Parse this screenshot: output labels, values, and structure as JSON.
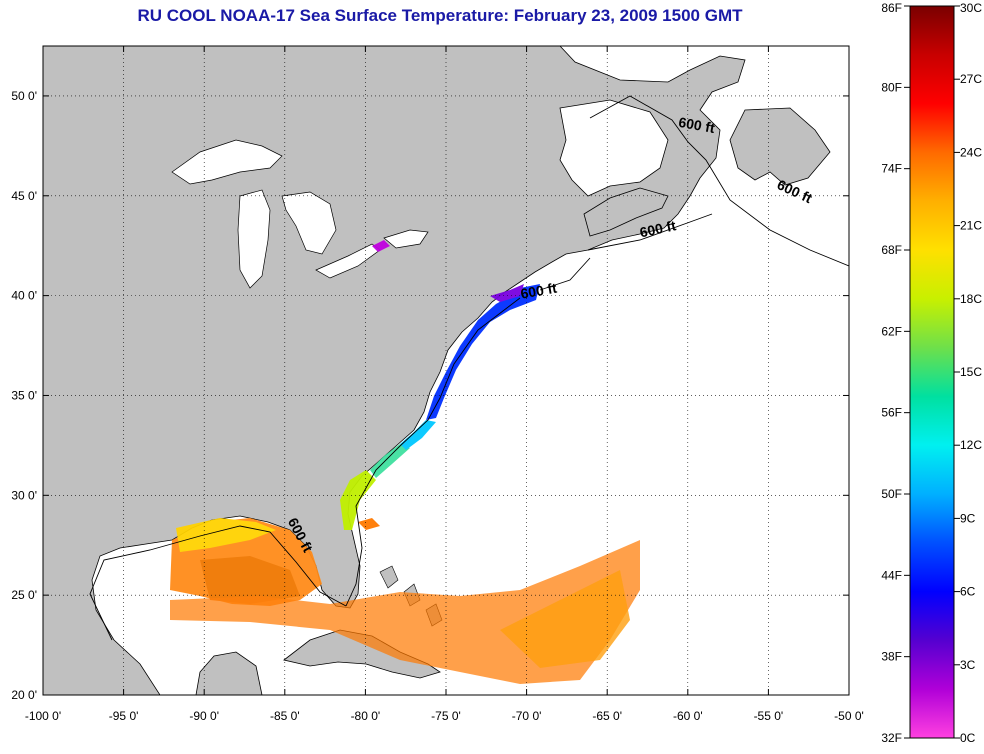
{
  "title": "RU COOL  NOAA-17  Sea Surface Temperature:  February 23, 2009 1500 GMT",
  "map": {
    "lon_range": [
      -100,
      -50
    ],
    "lat_range": [
      20,
      52.5
    ],
    "lon_ticks": [
      {
        "value": -100,
        "label": "-100 0'"
      },
      {
        "value": -95,
        "label": "-95 0'"
      },
      {
        "value": -90,
        "label": "-90 0'"
      },
      {
        "value": -85,
        "label": "-85 0'"
      },
      {
        "value": -80,
        "label": "-80 0'"
      },
      {
        "value": -75,
        "label": "-75 0'"
      },
      {
        "value": -70,
        "label": "-70 0'"
      },
      {
        "value": -65,
        "label": "-65 0'"
      },
      {
        "value": -60,
        "label": "-60 0'"
      },
      {
        "value": -55,
        "label": "-55 0'"
      },
      {
        "value": -50,
        "label": "-50 0'"
      }
    ],
    "lat_ticks": [
      {
        "value": 20,
        "label": "20 0'"
      },
      {
        "value": 25,
        "label": "25 0'"
      },
      {
        "value": 30,
        "label": "30 0'"
      },
      {
        "value": 35,
        "label": "35 0'"
      },
      {
        "value": 40,
        "label": "40 0'"
      },
      {
        "value": 45,
        "label": "45 0'"
      },
      {
        "value": 50,
        "label": "50 0'"
      }
    ],
    "grid": "dotted",
    "land_color": "#c0c0c0",
    "water_color": "#ffffff",
    "isobath_label": "600 ft",
    "isobath_labels": [
      {
        "lon": -59.5,
        "lat": 48.3,
        "rotate": 10
      },
      {
        "lon": -53.5,
        "lat": 45.0,
        "rotate": 25
      },
      {
        "lon": -61.8,
        "lat": 43.1,
        "rotate": -12
      },
      {
        "lon": -69.2,
        "lat": 40.0,
        "rotate": -10
      },
      {
        "lon": -84.3,
        "lat": 27.9,
        "rotate": 62
      }
    ]
  },
  "colorbar": {
    "f_labels": [
      "86F",
      "80F",
      "74F",
      "68F",
      "62F",
      "56F",
      "50F",
      "44F",
      "38F",
      "32F"
    ],
    "c_labels": [
      "30C",
      "27C",
      "24C",
      "21C",
      "18C",
      "15C",
      "12C",
      "9C",
      "6C",
      "3C",
      "0C"
    ],
    "colors_top_to_bottom": [
      "#7a0000",
      "#c80000",
      "#ff0000",
      "#ff6a00",
      "#ffb000",
      "#ffe000",
      "#c8f000",
      "#6ee04a",
      "#00e0a0",
      "#00f0f0",
      "#00b0ff",
      "#0050ff",
      "#0000ff",
      "#5500d0",
      "#b000d8",
      "#ff40e0"
    ]
  }
}
